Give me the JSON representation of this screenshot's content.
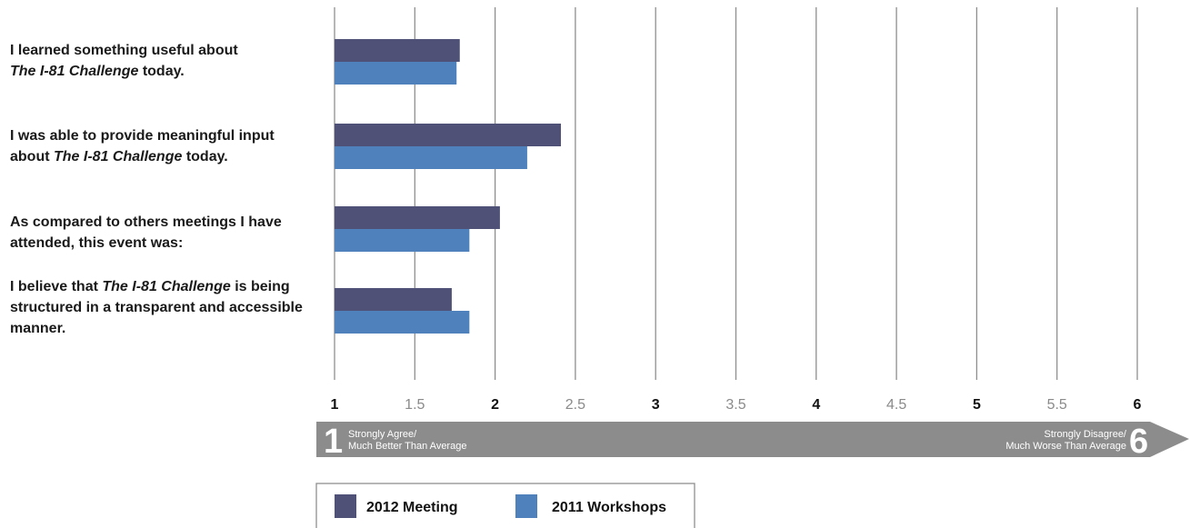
{
  "chart_data": {
    "type": "bar",
    "orientation": "horizontal",
    "categories": [
      [
        {
          "t": "I learned something useful about",
          "i": false
        },
        {
          "br": true
        },
        {
          "t": "The I-81 Challenge",
          "i": true
        },
        {
          "t": " today.",
          "i": false
        }
      ],
      [
        {
          "t": "I was able to provide meaningful input",
          "i": false
        },
        {
          "br": true
        },
        {
          "t": "about ",
          "i": false
        },
        {
          "t": "The I-81 Challenge",
          "i": true
        },
        {
          "t": " today.",
          "i": false
        }
      ],
      [
        {
          "t": "As compared to others meetings I have",
          "i": false
        },
        {
          "br": true
        },
        {
          "t": "attended, this event was:",
          "i": false
        }
      ],
      [
        {
          "t": "I believe that ",
          "i": false
        },
        {
          "t": "The I-81 Challenge",
          "i": true
        },
        {
          "t": " is being",
          "i": false
        },
        {
          "br": true
        },
        {
          "t": "structured in a transparent and accessible",
          "i": false
        },
        {
          "br": true
        },
        {
          "t": "manner.",
          "i": false
        }
      ]
    ],
    "series": [
      {
        "name": "2012 Meeting",
        "color": "#4f5176",
        "values": [
          1.78,
          2.41,
          2.03,
          1.73
        ]
      },
      {
        "name": "2011 Workshops",
        "color": "#4f81bd",
        "values": [
          1.76,
          2.2,
          1.84,
          1.84
        ]
      }
    ],
    "xlim": [
      1,
      6
    ],
    "ticks": [
      {
        "v": 1,
        "label": "1",
        "major": true
      },
      {
        "v": 1.5,
        "label": "1.5",
        "major": false
      },
      {
        "v": 2,
        "label": "2",
        "major": true
      },
      {
        "v": 2.5,
        "label": "2.5",
        "major": false
      },
      {
        "v": 3,
        "label": "3",
        "major": true
      },
      {
        "v": 3.5,
        "label": "3.5",
        "major": false
      },
      {
        "v": 4,
        "label": "4",
        "major": true
      },
      {
        "v": 4.5,
        "label": "4.5",
        "major": false
      },
      {
        "v": 5,
        "label": "5",
        "major": true
      },
      {
        "v": 5.5,
        "label": "5.5",
        "major": false
      },
      {
        "v": 6,
        "label": "6",
        "major": true
      }
    ],
    "grid": true,
    "legend_position": "bottom",
    "scale_arrow": {
      "left": {
        "number": "1",
        "line1": "Strongly Agree/",
        "line2": "Much Better Than Average"
      },
      "right": {
        "number": "6",
        "line1": "Strongly Disagree/",
        "line2": "Much Worse Than Average"
      },
      "color": "#8c8c8c"
    }
  }
}
